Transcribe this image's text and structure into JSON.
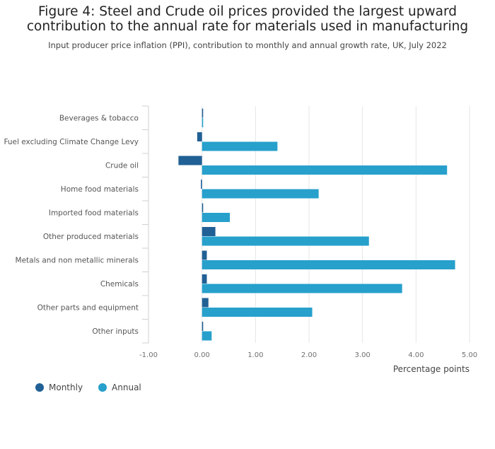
{
  "title": "Figure 4: Steel and Crude oil prices provided the largest upward contribution to the annual rate for materials used in manufacturing",
  "subtitle": "Input producer price inflation (PPI), contribution to monthly and annual growth rate, UK, July 2022",
  "colors": {
    "monthly": "#206095",
    "annual": "#27a0cc",
    "grid": "#e6e6e6",
    "axis": "#d0d0d0",
    "tick_text": "#707070"
  },
  "chart_data": {
    "type": "bar",
    "orientation": "horizontal",
    "title": "Figure 4: Steel and Crude oil prices provided the largest upward contribution to the annual rate for materials used in manufacturing",
    "xlabel": "Percentage points",
    "ylabel": "",
    "xlim": [
      -1.0,
      5.0
    ],
    "xticks": [
      -1,
      0,
      1,
      2,
      3,
      4,
      5
    ],
    "xtick_labels": [
      "-1.00",
      "0.00",
      "1.00",
      "2.00",
      "3.00",
      "4.00",
      "5.00"
    ],
    "grid": true,
    "legend": "bottom-left",
    "categories": [
      "Beverages & tobacco",
      "Fuel excluding Climate Change Levy",
      "Crude oil",
      "Home food materials",
      "Imported food materials",
      "Other produced materials",
      "Metals and non metallic minerals",
      "Chemicals",
      "Other parts and equipment",
      "Other inputs"
    ],
    "series": [
      {
        "name": "Monthly",
        "values": [
          0.0,
          -0.09,
          -0.44,
          -0.02,
          0.01,
          0.25,
          0.09,
          0.09,
          0.12,
          0.0
        ]
      },
      {
        "name": "Annual",
        "values": [
          0.02,
          1.41,
          4.58,
          2.18,
          0.52,
          3.12,
          4.73,
          3.74,
          2.06,
          0.18
        ]
      }
    ]
  }
}
